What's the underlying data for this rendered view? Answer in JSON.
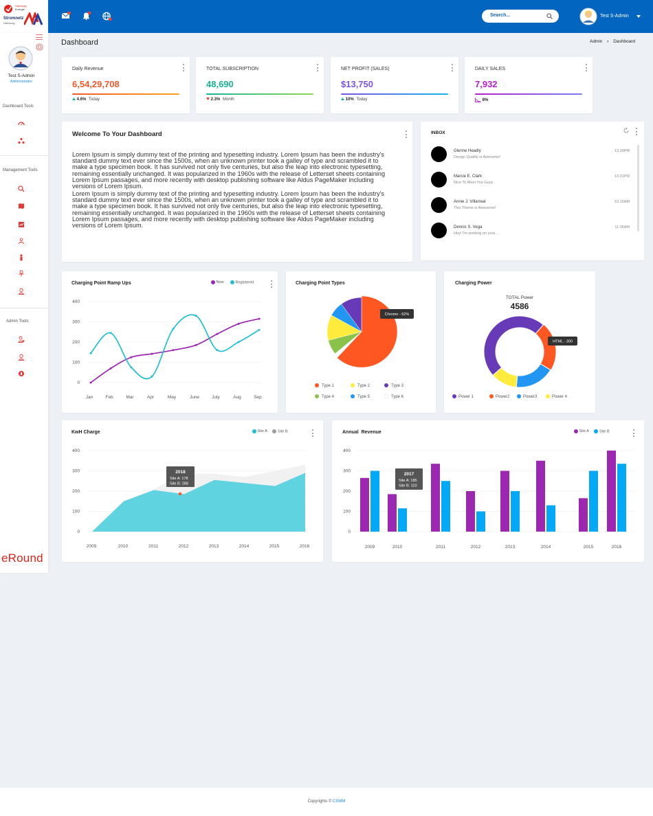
{
  "brand": {
    "line1": "Hamburg",
    "line2": "Energie",
    "line3": "Stromnetz",
    "line4": "Hamburg",
    "footer_logo": "eRound"
  },
  "topbar": {
    "icons": [
      "mail-icon",
      "bell-icon",
      "globe-icon"
    ],
    "search_placeholder": "Search...",
    "user_name": "Test S-Admin"
  },
  "sidebar": {
    "user_name": "Test S-Admin",
    "user_role": "Administrator",
    "sections": [
      {
        "label": "Dashboard Tools",
        "items": [
          "dashboard-icon",
          "network-icon"
        ]
      },
      {
        "label": "Management Tools",
        "items": [
          "search-icon",
          "map-icon",
          "chart-icon",
          "users-icon",
          "person-icon",
          "user-settings-icon",
          "user-icon"
        ]
      },
      {
        "label": "Admin Tools",
        "items": [
          "admin-user-icon",
          "user-edit-icon",
          "badge-icon"
        ]
      }
    ]
  },
  "page": {
    "title": "Dashboard",
    "breadcrumb_root": "Admin",
    "breadcrumb_current": "Dashboard"
  },
  "stats": [
    {
      "label": "Daily Revenue",
      "value": "6,54,29,708",
      "change": "4.6%",
      "period": "Today",
      "color": "#f05a28",
      "bar": "linear-gradient(90deg,#f05a28,#f7a21b)",
      "trend": "up"
    },
    {
      "label": "TOTAL SUBSCRIPTION",
      "value": "48,690",
      "change": "2.3%",
      "period": "Month",
      "color": "#1ab394",
      "bar": "linear-gradient(90deg,#1ab394,#8bd651)",
      "trend": "down"
    },
    {
      "label": "NET PROFIT (SALES)",
      "value": "$13,750",
      "change": "10%",
      "period": "Today",
      "color": "#7a52e6",
      "bar": "linear-gradient(90deg,#7a52e6,#14b4e6)",
      "trend": "up"
    },
    {
      "label": "DAILY SALES",
      "value": "7,932",
      "change": "8%",
      "period": "",
      "color": "#b31fc6",
      "bar": "linear-gradient(90deg,#b31fc6,#7b7cf0)",
      "trend": "chart"
    }
  ],
  "welcome": {
    "title": "Welcome To Your Dashboard",
    "paragraphs": [
      "Lorem Ipsum is simply dummy text of the printing and typesetting industry. Lorem Ipsum has been the industry's standard dummy text ever since the 1500s, when an unknown printer took a galley of type and scrambled it to make a type specimen book. It has survived not only five centuries, but also the leap into electronic typesetting, remaining essentially unchanged. It was popularized in the 1960s with the release of Letterset sheets containing Lorem Ipsum passages, and more recently with desktop publishing software like Aldus PageMaker including versions of Lorem Ipsum.",
      "Lorem Ipsum is simply dummy text of the printing and typesetting industry. Lorem Ipsum has been the industry's standard dummy text ever since the 1500s, when an unknown printer took a galley of type and scrambled it to make a type specimen book. It has survived not only five centuries, but also the leap into electronic typesetting, remaining essentially unchanged. It was popularized in the 1960s with the release of Letterset sheets containing Lorem Ipsum passages, and more recently with desktop publishing software like Aldus PageMaker including versions of Lorem Ipsum."
    ]
  },
  "inbox": {
    "title": "INBOX",
    "messages": [
      {
        "name": "Glenne Headly",
        "message": "Design Quality is Awesome!",
        "time": "13.30PM"
      },
      {
        "name": "Marcie E. Clark",
        "message": "Nice To Meet You Guys",
        "time": "13.31PM"
      },
      {
        "name": "Annie J. Villarreal",
        "message": "This Theme is Awesome!",
        "time": "10.15AM"
      },
      {
        "name": "Dennis S. Vega",
        "message": "Hey! I'm working on your...",
        "time": "11.05AM"
      }
    ]
  },
  "chart_data": [
    {
      "type": "line",
      "title": "Charging Point Ramp Ups",
      "categories": [
        "Jan",
        "Feb",
        "Mar",
        "Apr",
        "May",
        "June",
        "July",
        "Aug",
        "Sep"
      ],
      "ylim": [
        0,
        400
      ],
      "yticks": [
        "400",
        "300",
        "200",
        "100",
        "0"
      ],
      "series": [
        {
          "name": "New",
          "color": "#9c27b0",
          "values": [
            0,
            70,
            125,
            142,
            160,
            185,
            240,
            290,
            315
          ]
        },
        {
          "name": "Registered",
          "color": "#1fbfd1",
          "values": [
            145,
            245,
            75,
            30,
            265,
            330,
            160,
            200,
            260
          ]
        }
      ],
      "legend": "top-right"
    },
    {
      "type": "pie",
      "title": "Charging Point Types",
      "tooltip": "Chrome - 62%",
      "slices": [
        {
          "label": "Type 1",
          "value": 62,
          "color": "#ff5722"
        },
        {
          "label": "Type 2",
          "value": 12,
          "color": "#ffeb3b"
        },
        {
          "label": "Type 3",
          "value": 10,
          "color": "#673ab7"
        },
        {
          "label": "Type 4",
          "value": 7,
          "color": "#8bc34a"
        },
        {
          "label": "Type 5",
          "value": 7,
          "color": "#2196f3"
        },
        {
          "label": "Type 6",
          "value": 2,
          "color": "#ffffff"
        }
      ],
      "legend": "bottom"
    },
    {
      "type": "pie",
      "title": "Charging Power",
      "center_label": "TOTAL Power",
      "center_value": "4586",
      "tooltip": "HTML - 300",
      "slices": [
        {
          "label": "Power 1",
          "value": 48,
          "color": "#673ab7"
        },
        {
          "label": "Power2",
          "value": 22,
          "color": "#ff5722"
        },
        {
          "label": "Power3",
          "value": 18,
          "color": "#2196f3"
        },
        {
          "label": "Power 4",
          "value": 12,
          "color": "#ffeb3b"
        }
      ],
      "legend": "bottom"
    },
    {
      "type": "area",
      "title": "KwH Charge",
      "categories": [
        "2009",
        "2010",
        "2011",
        "2012",
        "2013",
        "2014",
        "2015",
        "2016"
      ],
      "ylim": [
        0,
        400
      ],
      "yticks": [
        "400",
        "300",
        "200",
        "100",
        "0"
      ],
      "series": [
        {
          "name": "Site A",
          "color": "#1fbfd1",
          "values": [
            0,
            150,
            205,
            185,
            255,
            240,
            225,
            290
          ]
        },
        {
          "name": "Site B",
          "color": "#9e9e9e",
          "values": [
            0,
            150,
            210,
            288,
            285,
            270,
            300,
            330
          ]
        }
      ],
      "tooltip": {
        "year": "2018",
        "line1": "Site A: 178",
        "line2": "Site B: 288"
      },
      "legend": "top-right"
    },
    {
      "type": "bar",
      "title": "Annual  Revenue",
      "categories": [
        "2009",
        "2010",
        "2011",
        "2012",
        "2013",
        "2014",
        "2015",
        "2016"
      ],
      "ylim": [
        0,
        400
      ],
      "yticks": [
        "400",
        "300",
        "200",
        "100",
        "0"
      ],
      "series": [
        {
          "name": "Site A",
          "color": "#9c27b0",
          "values": [
            265,
            185,
            335,
            200,
            300,
            350,
            165,
            400
          ]
        },
        {
          "name": "Site B",
          "color": "#03a9f4",
          "values": [
            300,
            115,
            250,
            100,
            200,
            130,
            300,
            335
          ]
        }
      ],
      "tooltip": {
        "year": "2017",
        "line1": "Site A: 185",
        "line2": "Site B: 110"
      },
      "legend": "top-right"
    }
  ],
  "footer": {
    "prefix": "Copyrights © ",
    "link": "CSMM"
  }
}
